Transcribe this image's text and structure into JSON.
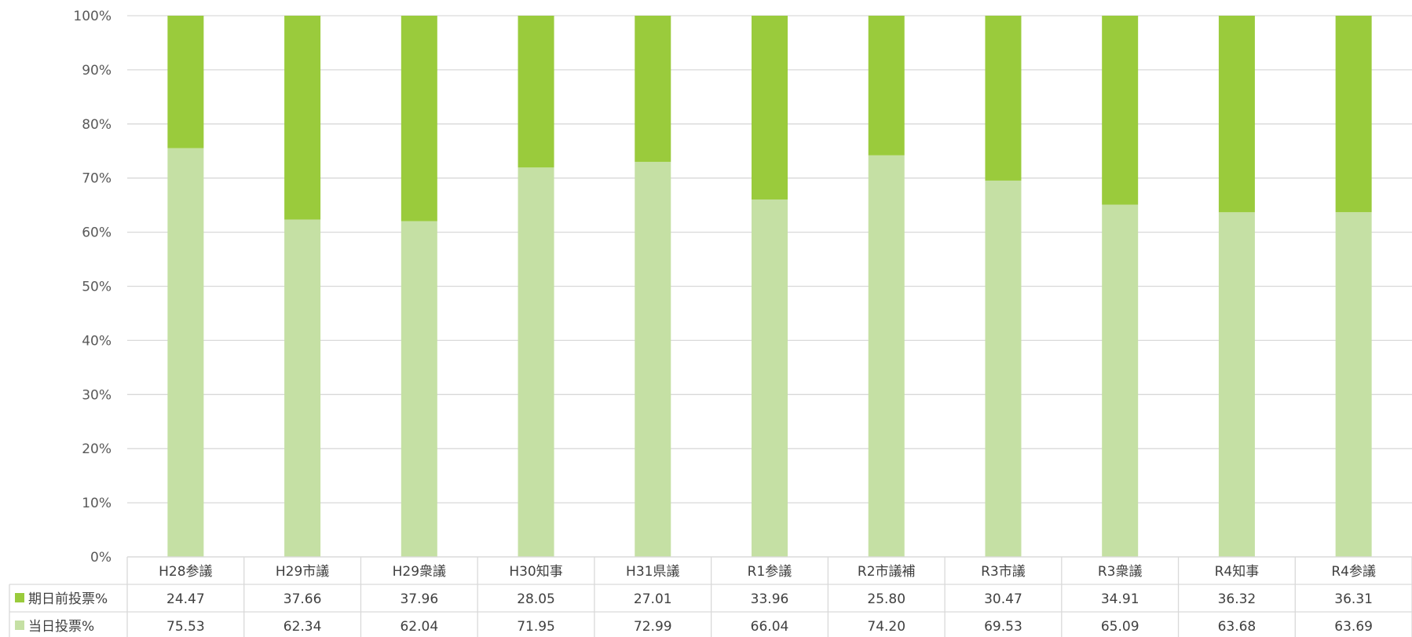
{
  "chart_data": {
    "type": "bar",
    "stacked": true,
    "percent": true,
    "categories": [
      "H28参議",
      "H29市議",
      "H29衆議",
      "H30知事",
      "H31県議",
      "R1参議",
      "R2市議補",
      "R3市議",
      "R3衆議",
      "R4知事",
      "R4参議"
    ],
    "series": [
      {
        "name": "期日前投票%",
        "color": "#9acb3c",
        "values": [
          24.47,
          37.66,
          37.96,
          28.05,
          27.01,
          33.96,
          25.8,
          30.47,
          34.91,
          36.32,
          36.31
        ],
        "labels": [
          "24.47",
          "37.66",
          "37.96",
          "28.05",
          "27.01",
          "33.96",
          "25.80",
          "30.47",
          "34.91",
          "36.32",
          "36.31"
        ]
      },
      {
        "name": "当日投票%",
        "color": "#c5e0a4",
        "values": [
          75.53,
          62.34,
          62.04,
          71.95,
          72.99,
          66.04,
          74.2,
          69.53,
          65.09,
          63.68,
          63.69
        ],
        "labels": [
          "75.53",
          "62.34",
          "62.04",
          "71.95",
          "72.99",
          "66.04",
          "74.20",
          "69.53",
          "65.09",
          "63.68",
          "63.69"
        ]
      }
    ],
    "y_ticks": [
      "0%",
      "10%",
      "20%",
      "30%",
      "40%",
      "50%",
      "60%",
      "70%",
      "80%",
      "90%",
      "100%"
    ],
    "ylim": [
      0,
      100
    ],
    "grid": true,
    "data_table": true,
    "legend": "data-table-left"
  }
}
